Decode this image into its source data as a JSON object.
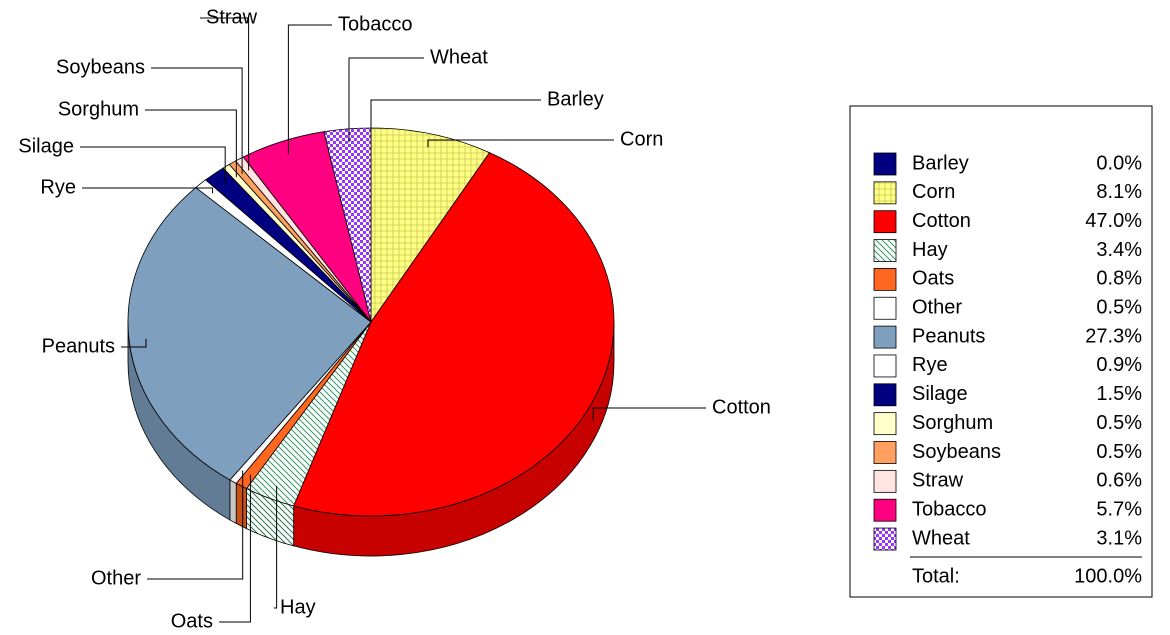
{
  "chart_data": {
    "type": "pie",
    "categories": [
      "Barley",
      "Corn",
      "Cotton",
      "Hay",
      "Oats",
      "Other",
      "Peanuts",
      "Rye",
      "Silage",
      "Sorghum",
      "Soybeans",
      "Straw",
      "Tobacco",
      "Wheat"
    ],
    "values": [
      0.0,
      8.1,
      47.0,
      3.4,
      0.8,
      0.5,
      27.3,
      0.9,
      1.5,
      0.5,
      0.5,
      0.6,
      5.7,
      3.1
    ],
    "value_labels": [
      "0.0%",
      "8.1%",
      "47.0%",
      "3.4%",
      "0.8%",
      "0.5%",
      "27.3%",
      "0.9%",
      "1.5%",
      "0.5%",
      "0.5%",
      "0.6%",
      "5.7%",
      "3.1%"
    ],
    "colors": [
      "#000080",
      "#ffff80",
      "#ff0000",
      "#339966",
      "#ff6620",
      "#ffffff",
      "#7f9fbf",
      "#ffffff",
      "#000080",
      "#ffffcc",
      "#ffa060",
      "#ffe4e1",
      "#ff0080",
      "#9933ff"
    ],
    "patterns": [
      null,
      "grid",
      null,
      "diagonal",
      null,
      null,
      null,
      null,
      null,
      null,
      null,
      null,
      null,
      "checker"
    ],
    "total": {
      "label": "Total:",
      "value": 100,
      "value_label": "100.0%"
    },
    "legend": "right"
  }
}
